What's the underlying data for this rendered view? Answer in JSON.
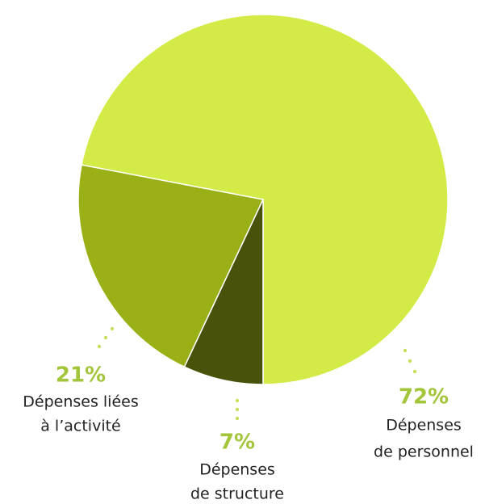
{
  "chart_data": {
    "type": "pie",
    "categories": [
      [
        "Dépenses",
        "de structure"
      ],
      [
        "Dépenses liées",
        "à l’activité"
      ],
      [
        "Dépenses",
        "de personnel"
      ]
    ],
    "values": [
      7,
      21,
      72
    ],
    "value_labels": [
      "7%",
      "21%",
      "72%"
    ],
    "colors": [
      "#48520a",
      "#9bb017",
      "#d4eb47"
    ]
  }
}
